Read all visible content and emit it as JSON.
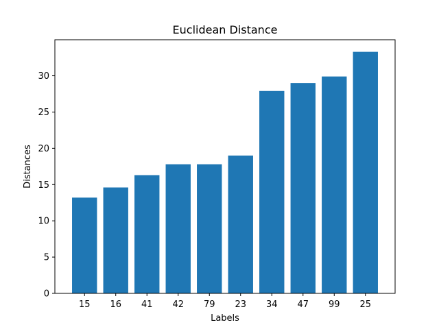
{
  "chart_data": {
    "type": "bar",
    "title": "Euclidean Distance",
    "xlabel": "Labels",
    "ylabel": "Distances",
    "categories": [
      "15",
      "16",
      "41",
      "42",
      "79",
      "23",
      "34",
      "47",
      "99",
      "25"
    ],
    "values": [
      13.2,
      14.6,
      16.3,
      17.8,
      17.8,
      19.0,
      27.9,
      29.0,
      29.9,
      33.3
    ],
    "ylim": [
      0,
      34.965
    ],
    "yticks": [
      0,
      5,
      10,
      15,
      20,
      25,
      30
    ],
    "bar_color": "#1f77b4",
    "grid": false,
    "legend": "none"
  }
}
